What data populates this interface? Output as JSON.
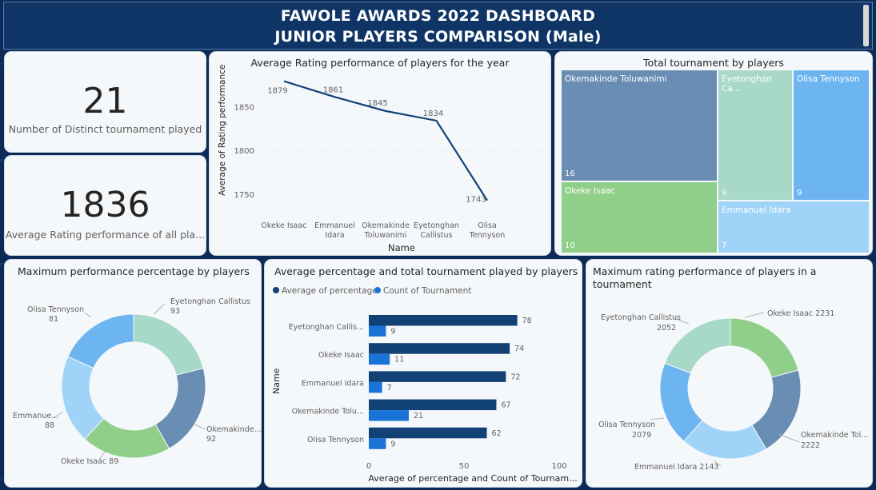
{
  "header": {
    "title_line1": "FAWOLE AWARDS 2022 DASHBOARD",
    "title_line2": "JUNIOR PLAYERS COMPARISON (Male)"
  },
  "kpi1": {
    "value": "21",
    "label": "Number of Distinct tournament played"
  },
  "kpi2": {
    "value": "1836",
    "label": "Average Rating performance of all pla..."
  },
  "line_chart": {
    "title": "Average Rating performance of players for the year",
    "ylabel": "Average of Rating performance",
    "xlabel": "Name",
    "y_ticks": [
      "1850",
      "1800",
      "1750"
    ],
    "cat_lines": [
      [
        "Okeke Isaac"
      ],
      [
        "Emmanuel",
        "Idara"
      ],
      [
        "Okemakinde",
        "Toluwanimi"
      ],
      [
        "Eyetonghan",
        "Callistus"
      ],
      [
        "Olisa",
        "Tennyson"
      ]
    ]
  },
  "treemap": {
    "title": "Total tournament by players",
    "cells": [
      {
        "name": "Okemakinde Toluwanimi",
        "value": "16",
        "color": "#6a8db3"
      },
      {
        "name": "Eyetonghan Ca...",
        "value": "9",
        "color": "#a8d8c8"
      },
      {
        "name": "Olisa Tennyson",
        "value": "9",
        "color": "#6db5f0"
      },
      {
        "name": "Okeke Isaac",
        "value": "10",
        "color": "#90cf8a"
      },
      {
        "name": "Emmanuel Idara",
        "value": "7",
        "color": "#9fd3f7"
      }
    ]
  },
  "donut1": {
    "title": "Maximum performance percentage by players",
    "labels": [
      {
        "name": "Eyetonghan Callistus",
        "value": "93"
      },
      {
        "name": "Okemakinde...",
        "value": "92"
      },
      {
        "name": "Okeke Isaac 89",
        "value": ""
      },
      {
        "name": "Emmanue...",
        "value": "88"
      },
      {
        "name": "Olisa Tennyson",
        "value": "81"
      }
    ]
  },
  "bar_chart": {
    "title": "Average percentage and total tournament played by players",
    "legend": [
      "Average of percentage",
      "Count of Tournament"
    ],
    "ylabel": "Name",
    "xlabel": "Average of percentage and Count of Tournam...",
    "x_ticks": [
      "0",
      "50",
      "100"
    ],
    "categories": [
      "Eyetonghan Callis...",
      "Okeke Isaac",
      "Emmanuel Idara",
      "Okemakinde Tolu...",
      "Olisa Tennyson"
    ]
  },
  "donut2": {
    "title_line1": "Maximum rating performance of players in a",
    "title_line2": "tournament",
    "labels": [
      {
        "name": "Okeke Isaac 2231",
        "value": ""
      },
      {
        "name": "Okemakinde Tol...",
        "value": "2222"
      },
      {
        "name": "Emmanuel Idara 2143",
        "value": ""
      },
      {
        "name": "Olisa Tennyson",
        "value": "2079"
      },
      {
        "name": "Eyetonghan Callistus",
        "value": "2052"
      }
    ]
  },
  "colors": {
    "dark_navy": "#0f3566",
    "navy_bar": "#124176",
    "blue_bar": "#1a73d6",
    "green": "#90cf8a",
    "steel": "#6a8db3",
    "mint": "#a8d8c8",
    "sky": "#6db5f0",
    "light_sky": "#9fd3f7"
  },
  "chart_data": [
    {
      "type": "line",
      "title": "Average Rating performance of players for the year",
      "xlabel": "Name",
      "ylabel": "Average of Rating performance",
      "categories": [
        "Okeke Isaac",
        "Emmanuel Idara",
        "Okemakinde Toluwanimi",
        "Eyetonghan Callistus",
        "Olisa Tennyson"
      ],
      "values": [
        1879,
        1861,
        1845,
        1834,
        1743
      ],
      "ylim": [
        1730,
        1885
      ],
      "grid": true
    },
    {
      "type": "treemap",
      "title": "Total tournament by players",
      "categories": [
        "Okemakinde Toluwanimi",
        "Eyetonghan Callistus",
        "Olisa Tennyson",
        "Okeke Isaac",
        "Emmanuel Idara"
      ],
      "values": [
        16,
        9,
        9,
        10,
        7
      ]
    },
    {
      "type": "pie",
      "title": "Maximum performance percentage by players",
      "categories": [
        "Eyetonghan Callistus",
        "Okemakinde Toluwanimi",
        "Okeke Isaac",
        "Emmanuel Idara",
        "Olisa Tennyson"
      ],
      "values": [
        93,
        92,
        89,
        88,
        81
      ],
      "colors": [
        "#a8d8c8",
        "#6a8db3",
        "#90cf8a",
        "#9fd3f7",
        "#6db5f0"
      ]
    },
    {
      "type": "bar",
      "orientation": "horizontal",
      "title": "Average percentage and total tournament played by players",
      "categories": [
        "Eyetonghan Callistus",
        "Okeke Isaac",
        "Emmanuel Idara",
        "Okemakinde Toluwanimi",
        "Olisa Tennyson"
      ],
      "series": [
        {
          "name": "Average of percentage",
          "values": [
            78,
            74,
            72,
            67,
            62
          ]
        },
        {
          "name": "Count of Tournament",
          "values": [
            9,
            11,
            7,
            21,
            9
          ]
        }
      ],
      "xlim": [
        0,
        110
      ],
      "legend": "top-left"
    },
    {
      "type": "pie",
      "title": "Maximum rating performance of players in a tournament",
      "categories": [
        "Okeke Isaac",
        "Okemakinde Toluwanimi",
        "Emmanuel Idara",
        "Olisa Tennyson",
        "Eyetonghan Callistus"
      ],
      "values": [
        2231,
        2222,
        2143,
        2079,
        2052
      ],
      "colors": [
        "#90cf8a",
        "#6a8db3",
        "#9fd3f7",
        "#6db5f0",
        "#a8d8c8"
      ]
    }
  ]
}
